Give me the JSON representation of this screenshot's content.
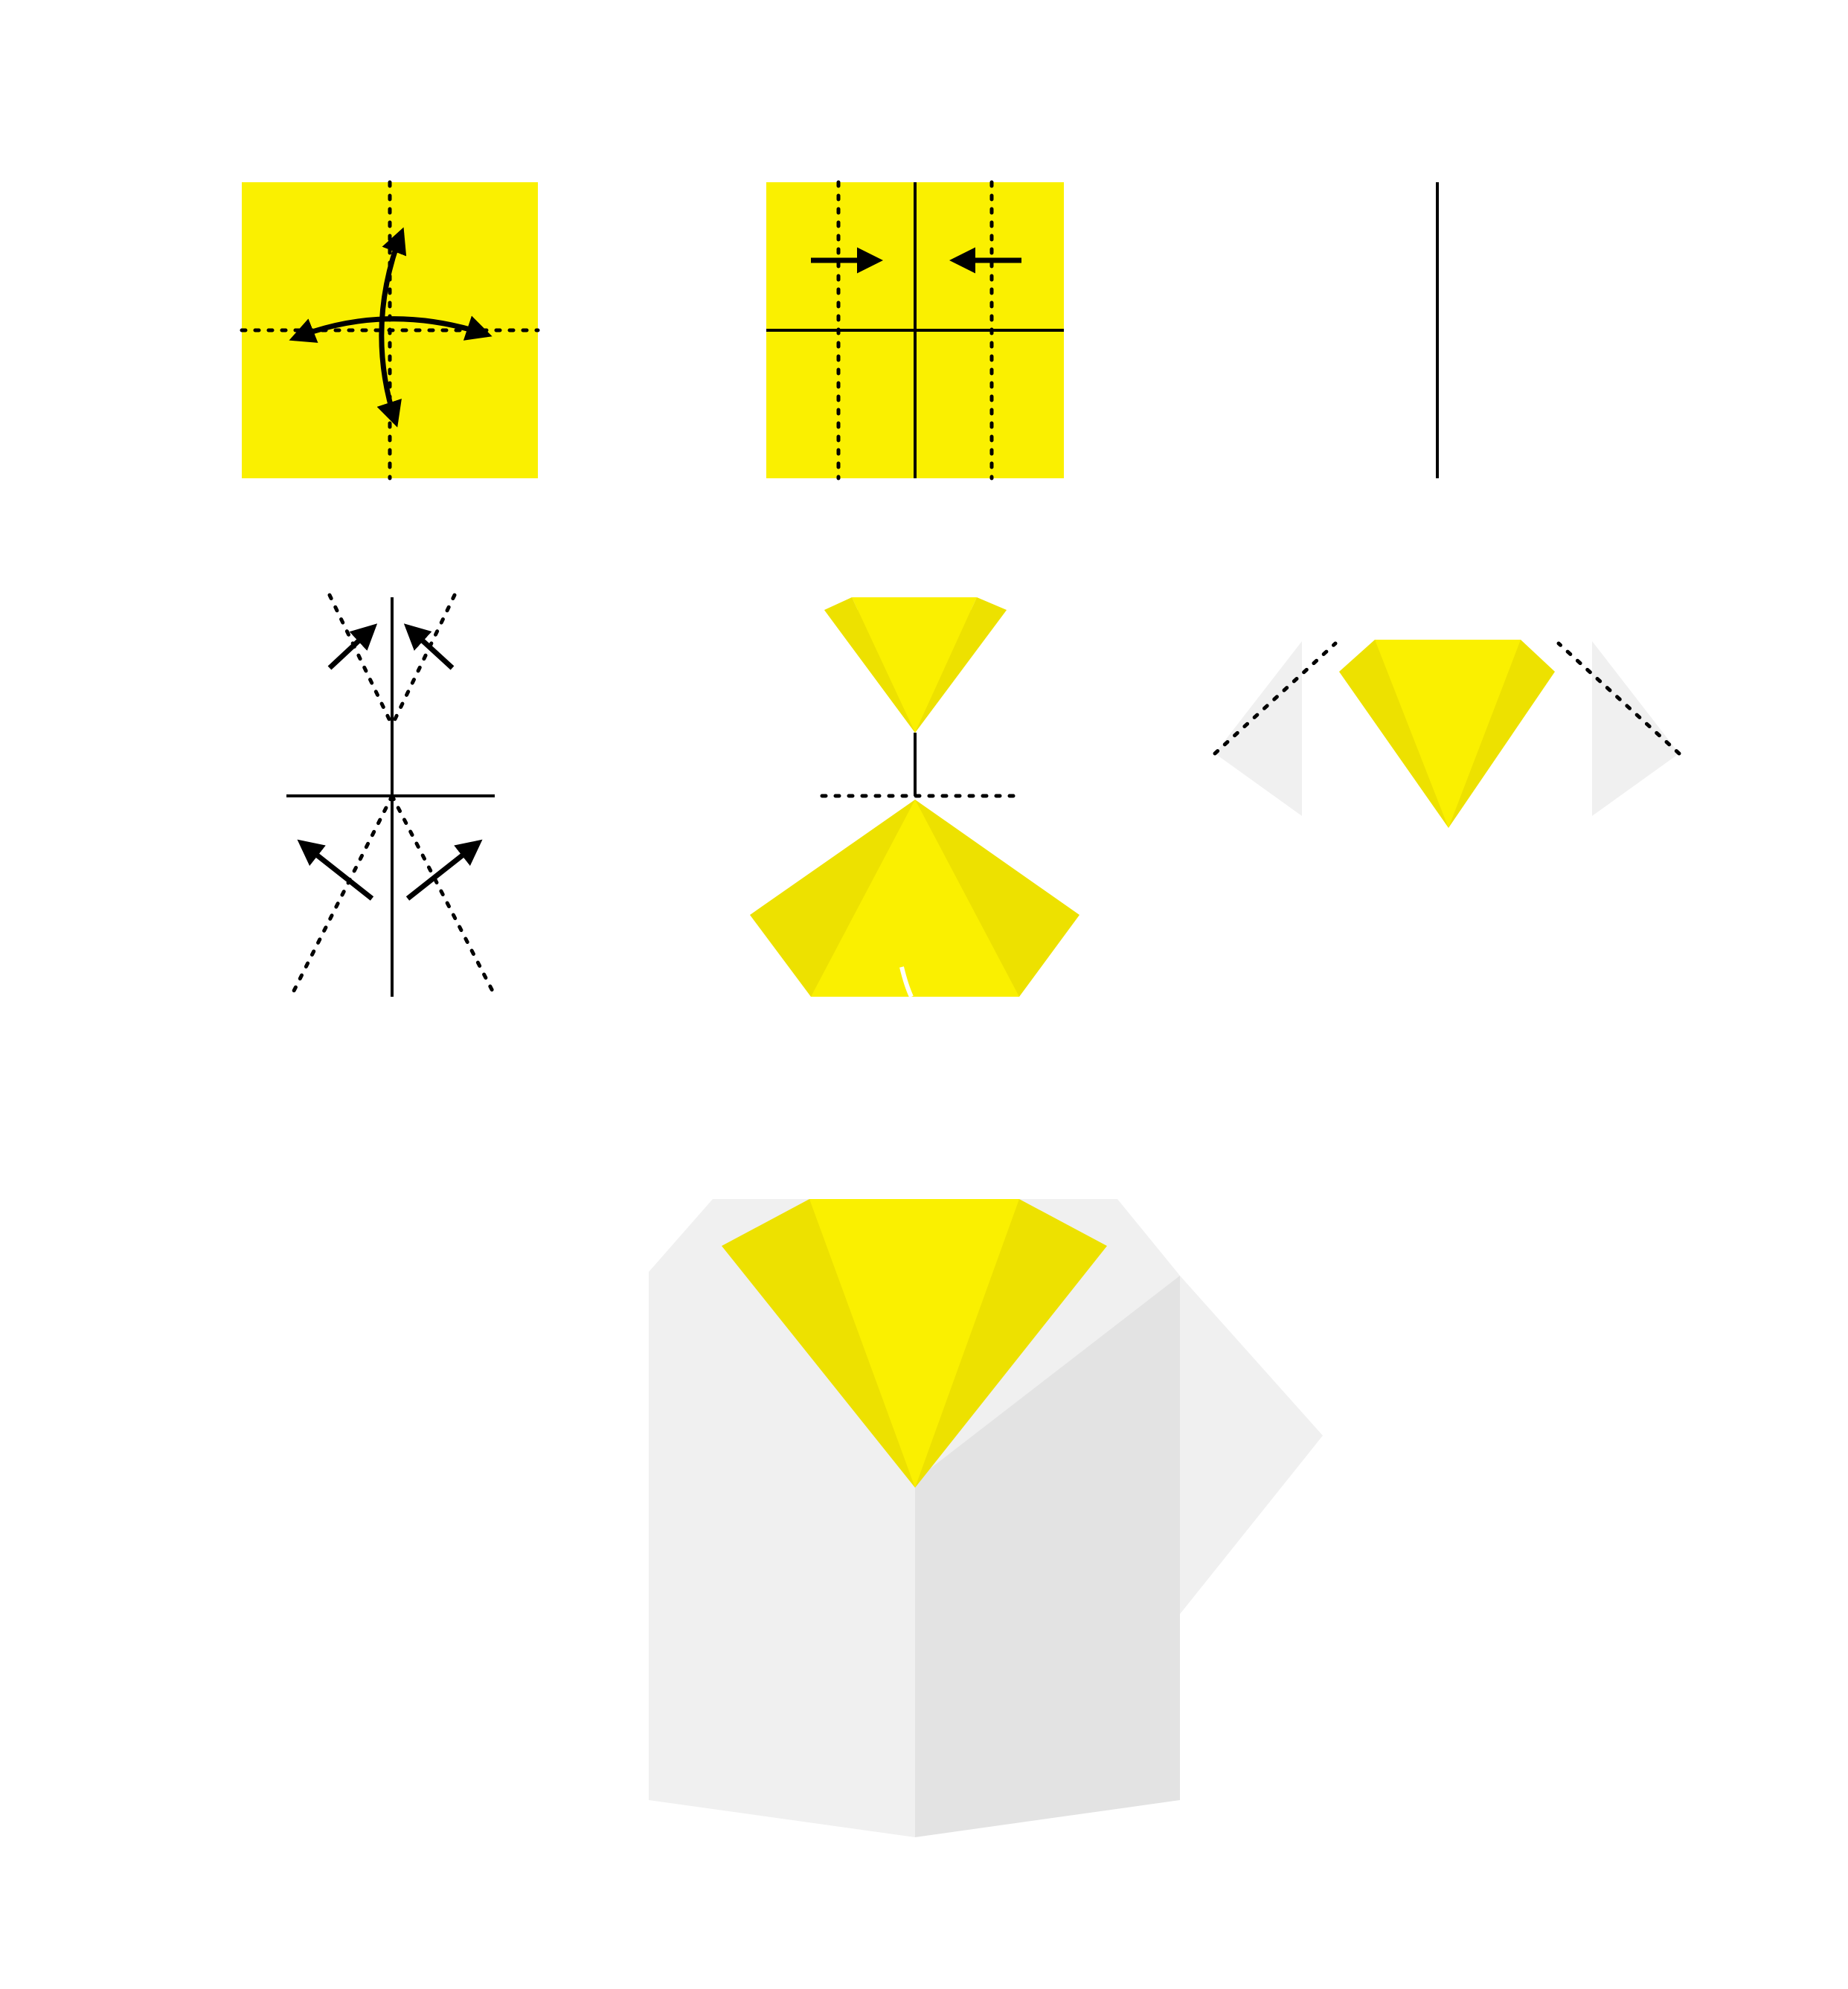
{
  "diagram": {
    "kind": "origami folding instructions",
    "step_count": 7,
    "colors": {
      "paper_front": "#FAF000",
      "paper_shade": "#EDE100",
      "paper_back": "#F0F0F0",
      "paper_back_shade": "#E3E3E3",
      "line": "#000000",
      "background": "#FFFFFF"
    },
    "steps": [
      {
        "id": "step-1",
        "arrows": [
          "fold-unfold-vertical",
          "fold-unfold-horizontal"
        ],
        "folds": [
          "valley-vertical",
          "valley-horizontal"
        ]
      },
      {
        "id": "step-2",
        "arrows": [
          "arrow-right",
          "arrow-left"
        ],
        "folds": [
          "valley-left",
          "valley-right"
        ]
      },
      {
        "id": "step-3",
        "folds": [
          "center-edge"
        ]
      },
      {
        "id": "step-4",
        "arrows": [
          "arrow-up-right",
          "arrow-up-left",
          "arrow-up-left-lower",
          "arrow-up-right-lower"
        ],
        "folds": [
          "diagonal-valleys"
        ]
      },
      {
        "id": "step-5",
        "folds": [
          "horizontal-valley"
        ]
      },
      {
        "id": "step-6",
        "folds": [
          "side-valleys"
        ]
      },
      {
        "id": "step-7",
        "result": "shirt-with-collar"
      }
    ]
  }
}
